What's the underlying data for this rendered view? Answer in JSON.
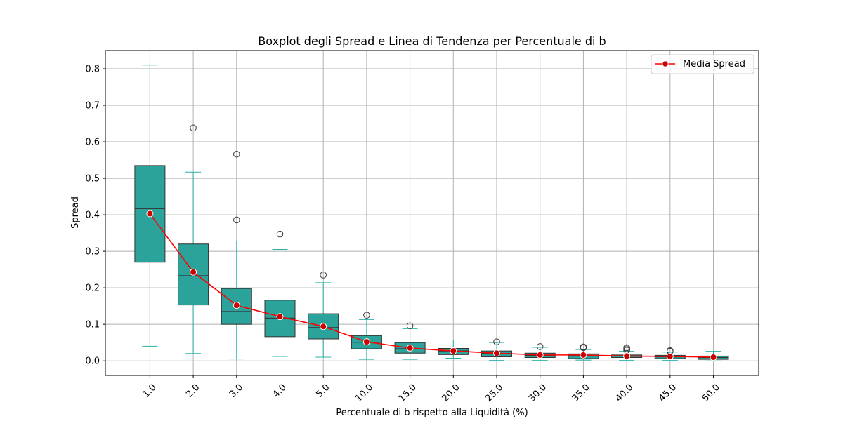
{
  "chart_data": {
    "type": "box",
    "title": "Boxplot degli Spread e Linea di Tendenza per Percentuale di b",
    "xlabel": "Percentuale di b rispetto alla Liquidità (%)",
    "ylabel": "Spread",
    "categories": [
      "1.0",
      "2.0",
      "3.0",
      "4.0",
      "5.0",
      "10.0",
      "15.0",
      "20.0",
      "25.0",
      "30.0",
      "35.0",
      "40.0",
      "45.0",
      "50.0"
    ],
    "ylim": [
      -0.04,
      0.85
    ],
    "yticks": [
      0.0,
      0.1,
      0.2,
      0.3,
      0.4,
      0.5,
      0.6,
      0.7,
      0.8
    ],
    "ytick_labels": [
      "0.0",
      "0.1",
      "0.2",
      "0.3",
      "0.4",
      "0.5",
      "0.6",
      "0.7",
      "0.8"
    ],
    "grid": true,
    "legend_position": "top-right",
    "boxes": [
      {
        "category": "1.0",
        "whisker_low": 0.04,
        "q1": 0.27,
        "median": 0.417,
        "q3": 0.535,
        "whisker_high": 0.81,
        "outliers": []
      },
      {
        "category": "2.0",
        "whisker_low": 0.02,
        "q1": 0.153,
        "median": 0.233,
        "q3": 0.32,
        "whisker_high": 0.517,
        "outliers": [
          0.638
        ]
      },
      {
        "category": "3.0",
        "whisker_low": 0.005,
        "q1": 0.1,
        "median": 0.135,
        "q3": 0.198,
        "whisker_high": 0.328,
        "outliers": [
          0.386,
          0.566
        ]
      },
      {
        "category": "4.0",
        "whisker_low": 0.012,
        "q1": 0.066,
        "median": 0.117,
        "q3": 0.166,
        "whisker_high": 0.305,
        "outliers": [
          0.347
        ]
      },
      {
        "category": "5.0",
        "whisker_low": 0.01,
        "q1": 0.06,
        "median": 0.091,
        "q3": 0.129,
        "whisker_high": 0.214,
        "outliers": [
          0.235
        ]
      },
      {
        "category": "10.0",
        "whisker_low": 0.004,
        "q1": 0.033,
        "median": 0.051,
        "q3": 0.069,
        "whisker_high": 0.113,
        "outliers": [
          0.125
        ]
      },
      {
        "category": "15.0",
        "whisker_low": 0.004,
        "q1": 0.021,
        "median": 0.033,
        "q3": 0.05,
        "whisker_high": 0.088,
        "outliers": [
          0.096
        ]
      },
      {
        "category": "20.0",
        "whisker_low": 0.007,
        "q1": 0.017,
        "median": 0.027,
        "q3": 0.034,
        "whisker_high": 0.057,
        "outliers": []
      },
      {
        "category": "25.0",
        "whisker_low": 0.001,
        "q1": 0.011,
        "median": 0.02,
        "q3": 0.027,
        "whisker_high": 0.05,
        "outliers": [
          0.052
        ]
      },
      {
        "category": "30.0",
        "whisker_low": 0.001,
        "q1": 0.009,
        "median": 0.015,
        "q3": 0.021,
        "whisker_high": 0.037,
        "outliers": [
          0.039
        ]
      },
      {
        "category": "35.0",
        "whisker_low": 0.002,
        "q1": 0.006,
        "median": 0.014,
        "q3": 0.019,
        "whisker_high": 0.031,
        "outliers": [
          0.036,
          0.038
        ]
      },
      {
        "category": "40.0",
        "whisker_low": 0.001,
        "q1": 0.009,
        "median": 0.013,
        "q3": 0.016,
        "whisker_high": 0.026,
        "outliers": [
          0.029,
          0.033,
          0.036
        ]
      },
      {
        "category": "45.0",
        "whisker_low": 0.001,
        "q1": 0.006,
        "median": 0.011,
        "q3": 0.015,
        "whisker_high": 0.024,
        "outliers": [
          0.026,
          0.028
        ]
      },
      {
        "category": "50.0",
        "whisker_low": 0.0,
        "q1": 0.004,
        "median": 0.009,
        "q3": 0.013,
        "whisker_high": 0.026,
        "outliers": []
      }
    ],
    "series": [
      {
        "name": "Media Spread",
        "type": "line",
        "values": [
          0.403,
          0.243,
          0.152,
          0.121,
          0.094,
          0.052,
          0.035,
          0.027,
          0.021,
          0.016,
          0.016,
          0.013,
          0.012,
          0.01
        ]
      }
    ],
    "colors": {
      "box_fill": "#2ca39a",
      "box_edge": "#333333",
      "whisker": "#2ab3a6",
      "line": "#ff0000",
      "marker_fill": "#cc0000",
      "grid": "#b0b0b0",
      "outlier_edge": "#3a3a3a"
    }
  }
}
